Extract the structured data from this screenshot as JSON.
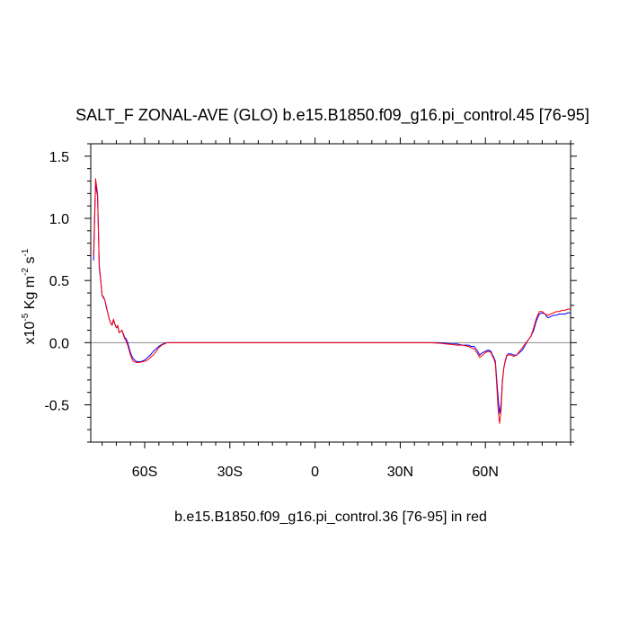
{
  "chart_data": {
    "type": "line",
    "title": "SALT_F ZONAL-AVE (GLO) b.e15.B1850.f09_g16.pi_control.45 [76-95]",
    "xlabel": "b.e15.B1850.f09_g16.pi_control.36 [76-95] in red",
    "ylabel": {
      "prefix": "x10",
      "exp1": "-5",
      "unit": " Kg m",
      "exp2": "-2",
      "unit2": " s",
      "exp3": "-1"
    },
    "xlim": [
      -79,
      90
    ],
    "ylim": [
      -0.8,
      1.6
    ],
    "x_ticks": [
      {
        "value": -60,
        "label": "60S"
      },
      {
        "value": -30,
        "label": "30S"
      },
      {
        "value": 0,
        "label": "0"
      },
      {
        "value": 30,
        "label": "30N"
      },
      {
        "value": 60,
        "label": "60N"
      }
    ],
    "y_ticks": [
      {
        "value": 1.5,
        "label": "1.5"
      },
      {
        "value": 1.0,
        "label": "1.0"
      },
      {
        "value": 0.5,
        "label": "0.5"
      },
      {
        "value": 0.0,
        "label": "0.0"
      },
      {
        "value": -0.5,
        "label": "-0.5"
      }
    ],
    "reference_line": 0.0,
    "series": [
      {
        "color": "#0000ff",
        "x": [
          -78,
          -77.3,
          -76.6,
          -76,
          -75.5,
          -75,
          -74.5,
          -74,
          -73.5,
          -73,
          -72.5,
          -72,
          -71.5,
          -71,
          -70.5,
          -70,
          -69.5,
          -69,
          -68.5,
          -68,
          -67.5,
          -67,
          -66.5,
          -66,
          -65.5,
          -65,
          -64.5,
          -64,
          -63,
          -62,
          -61,
          -60,
          -59,
          -58,
          -57,
          -56,
          -55,
          -54,
          -53,
          -52,
          -50,
          -45,
          -40,
          -30,
          -20,
          -10,
          0,
          10,
          20,
          30,
          40,
          44,
          46,
          48,
          50,
          52,
          54,
          55,
          56,
          57,
          58,
          59,
          60,
          61,
          62,
          62.5,
          63,
          63.5,
          64,
          64.5,
          65,
          65.5,
          66,
          66.5,
          67,
          67.5,
          68,
          69,
          70,
          71,
          72,
          73,
          74,
          75,
          76,
          77,
          78,
          79,
          80,
          81,
          82,
          83,
          84,
          85,
          86,
          87,
          88,
          89,
          90
        ],
        "y": [
          0.66,
          1.27,
          1.18,
          0.6,
          0.5,
          0.38,
          0.36,
          0.34,
          0.28,
          0.24,
          0.19,
          0.16,
          0.14,
          0.18,
          0.15,
          0.12,
          0.13,
          0.08,
          0.09,
          0.1,
          0.07,
          0.04,
          0.03,
          0.0,
          -0.04,
          -0.08,
          -0.11,
          -0.13,
          -0.15,
          -0.155,
          -0.15,
          -0.14,
          -0.12,
          -0.1,
          -0.07,
          -0.05,
          -0.03,
          -0.015,
          -0.005,
          0.0,
          0.0,
          0.0,
          0.0,
          0.0,
          0.0,
          0.0,
          0.0,
          0.0,
          0.0,
          0.0,
          0.0,
          0.0,
          -0.005,
          -0.01,
          -0.01,
          -0.02,
          -0.02,
          -0.03,
          -0.03,
          -0.06,
          -0.1,
          -0.08,
          -0.07,
          -0.06,
          -0.07,
          -0.1,
          -0.12,
          -0.15,
          -0.3,
          -0.45,
          -0.57,
          -0.5,
          -0.3,
          -0.2,
          -0.15,
          -0.11,
          -0.09,
          -0.09,
          -0.1,
          -0.1,
          -0.08,
          -0.06,
          -0.02,
          0.02,
          0.05,
          0.1,
          0.18,
          0.23,
          0.24,
          0.23,
          0.2,
          0.21,
          0.22,
          0.22,
          0.23,
          0.23,
          0.23,
          0.24,
          0.24
        ]
      },
      {
        "color": "#ff0000",
        "x": [
          -78,
          -77.3,
          -76.6,
          -76,
          -75.5,
          -75,
          -74.5,
          -74,
          -73.5,
          -73,
          -72.5,
          -72,
          -71.5,
          -71,
          -70.5,
          -70,
          -69.5,
          -69,
          -68.5,
          -68,
          -67.5,
          -67,
          -66.5,
          -66,
          -65.5,
          -65,
          -64.5,
          -64,
          -63,
          -62,
          -61,
          -60,
          -59,
          -58,
          -57,
          -56,
          -55,
          -54,
          -53,
          -52,
          -50,
          -45,
          -40,
          -30,
          -20,
          -10,
          0,
          10,
          20,
          30,
          40,
          44,
          46,
          48,
          50,
          52,
          54,
          55,
          56,
          57,
          58,
          59,
          60,
          61,
          62,
          62.5,
          63,
          63.5,
          64,
          64.5,
          65,
          65.5,
          66,
          66.5,
          67,
          67.5,
          68,
          69,
          70,
          71,
          72,
          73,
          74,
          75,
          76,
          77,
          78,
          79,
          80,
          81,
          82,
          83,
          84,
          85,
          86,
          87,
          88,
          89,
          90
        ],
        "y": [
          0.7,
          1.32,
          1.2,
          0.62,
          0.51,
          0.38,
          0.37,
          0.34,
          0.29,
          0.24,
          0.19,
          0.16,
          0.14,
          0.19,
          0.15,
          0.12,
          0.14,
          0.08,
          0.09,
          0.1,
          0.06,
          0.03,
          0.01,
          -0.02,
          -0.06,
          -0.1,
          -0.13,
          -0.15,
          -0.16,
          -0.16,
          -0.155,
          -0.15,
          -0.14,
          -0.12,
          -0.1,
          -0.07,
          -0.04,
          -0.02,
          -0.01,
          0.0,
          0.0,
          0.0,
          0.0,
          0.0,
          0.0,
          0.0,
          0.0,
          0.0,
          0.0,
          0.0,
          0.0,
          -0.005,
          -0.01,
          -0.015,
          -0.02,
          -0.02,
          -0.03,
          -0.04,
          -0.05,
          -0.08,
          -0.12,
          -0.1,
          -0.08,
          -0.07,
          -0.08,
          -0.11,
          -0.13,
          -0.17,
          -0.35,
          -0.55,
          -0.65,
          -0.55,
          -0.32,
          -0.2,
          -0.14,
          -0.1,
          -0.1,
          -0.1,
          -0.11,
          -0.1,
          -0.07,
          -0.04,
          -0.01,
          0.02,
          0.05,
          0.12,
          0.2,
          0.25,
          0.25,
          0.23,
          0.22,
          0.23,
          0.24,
          0.25,
          0.25,
          0.26,
          0.26,
          0.27,
          0.27
        ]
      }
    ]
  }
}
